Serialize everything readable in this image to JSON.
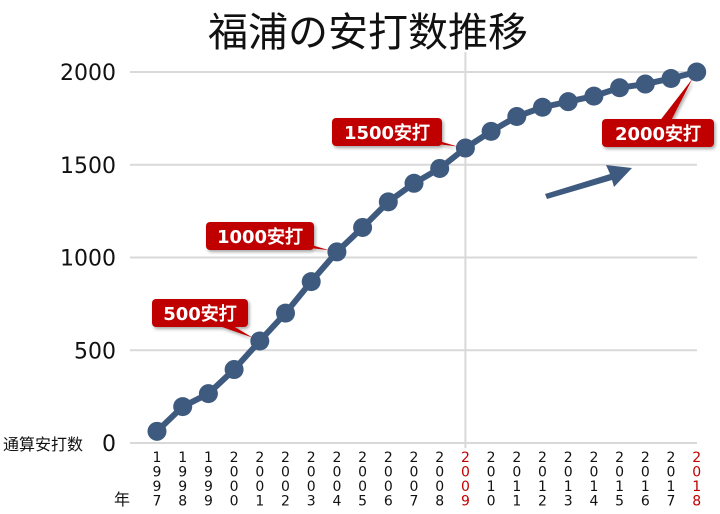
{
  "chart_data": {
    "type": "line",
    "title": "福浦の安打数推移",
    "ylabel": "通算安打数",
    "xlabel": "年",
    "ylim": [
      0,
      2000
    ],
    "yticks": [
      "0",
      "500",
      "1000",
      "1500",
      "2000"
    ],
    "categories": [
      "1997",
      "1998",
      "1999",
      "2000",
      "2001",
      "2002",
      "2003",
      "2004",
      "2005",
      "2006",
      "2007",
      "2008",
      "2009",
      "2010",
      "2011",
      "2012",
      "2013",
      "2014",
      "2015",
      "2016",
      "2017",
      "2018"
    ],
    "highlight_years": [
      "2009",
      "2018"
    ],
    "series": [
      {
        "values": [
          63,
          196,
          266,
          396,
          550,
          700,
          870,
          1030,
          1162,
          1300,
          1400,
          1480,
          1590,
          1680,
          1760,
          1810,
          1840,
          1870,
          1915,
          1935,
          1965,
          2000
        ]
      }
    ],
    "grid": true,
    "reference_line_year": "2009",
    "annotations": [
      {
        "label": "500安打",
        "year": "2001"
      },
      {
        "label": "1000安打",
        "year": "2004"
      },
      {
        "label": "1500安打",
        "year": "2009"
      },
      {
        "label": "2000安打",
        "year": "2018"
      }
    ],
    "colors": {
      "line": "#3F5A7F",
      "grid": "#D9D9D9",
      "label_bg": "#C00000",
      "label_text": "#FFFFFF",
      "highlight_tick": "#C00000",
      "title": "#111111"
    }
  }
}
